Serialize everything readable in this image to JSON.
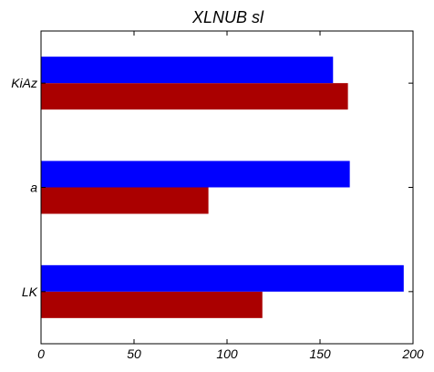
{
  "chart_data": {
    "type": "bar",
    "orientation": "horizontal",
    "title": "XLNUB sl",
    "xlabel": "",
    "ylabel": "",
    "categories": [
      "LK",
      "a",
      "KiAz"
    ],
    "series": [
      {
        "values": [
          119,
          90,
          165
        ],
        "color": "#aa0000"
      },
      {
        "values": [
          195,
          166,
          157
        ],
        "color": "#0000ff"
      }
    ],
    "xlim": [
      0,
      200
    ],
    "xticks": [
      0,
      50,
      100,
      150,
      200
    ],
    "grid": false,
    "legend": "none"
  }
}
